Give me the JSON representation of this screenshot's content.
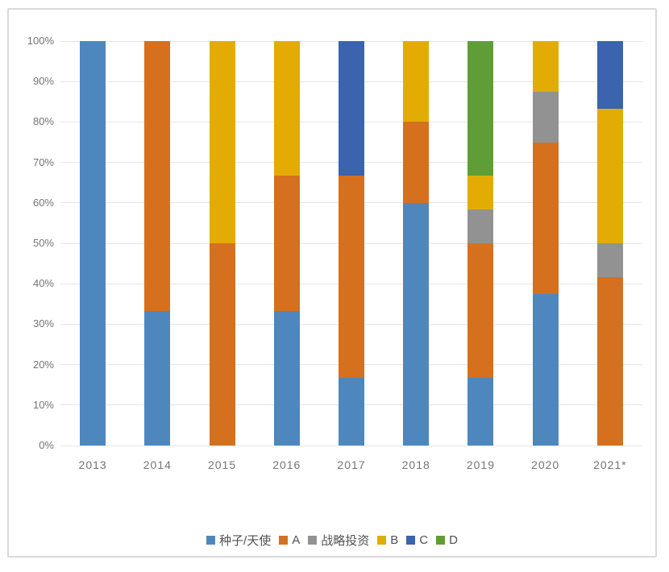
{
  "chart_data": {
    "type": "bar",
    "subtype": "stacked-100-percent",
    "title": "",
    "xlabel": "",
    "ylabel": "",
    "grid": true,
    "categories": [
      "2013",
      "2014",
      "2015",
      "2016",
      "2017",
      "2018",
      "2019",
      "2020",
      "2021*"
    ],
    "series": [
      {
        "name": "种子/天使",
        "color": "#4e87be",
        "values": [
          100,
          33.3,
          0,
          33.3,
          16.7,
          60,
          16.7,
          37.5,
          0
        ]
      },
      {
        "name": "A",
        "color": "#d5701e",
        "values": [
          0,
          66.7,
          50,
          33.3,
          50,
          20,
          33.3,
          37.5,
          41.7
        ]
      },
      {
        "name": "战略投资",
        "color": "#929292",
        "values": [
          0,
          0,
          0,
          0,
          0,
          0,
          8.3,
          12.5,
          8.3
        ]
      },
      {
        "name": "B",
        "color": "#e2ac04",
        "values": [
          0,
          0,
          50,
          33.3,
          0,
          20,
          8.3,
          12.5,
          33.3
        ]
      },
      {
        "name": "C",
        "color": "#3b63ae",
        "values": [
          0,
          0,
          0,
          0,
          33.3,
          0,
          0,
          0,
          16.7
        ]
      },
      {
        "name": "D",
        "color": "#5f9e37",
        "values": [
          0,
          0,
          0,
          0,
          0,
          0,
          33.3,
          0,
          0
        ]
      }
    ],
    "y_axis": {
      "min": 0,
      "max": 100,
      "step": 10,
      "format": "percent",
      "tick_labels": [
        "0%",
        "10%",
        "20%",
        "30%",
        "40%",
        "50%",
        "60%",
        "70%",
        "80%",
        "90%",
        "100%"
      ]
    },
    "legend": {
      "position": "bottom",
      "entries": [
        "种子/天使",
        "A",
        "战略投资",
        "B",
        "C",
        "D"
      ]
    }
  },
  "colors": {
    "background": "#ffffff",
    "frame_border": "#d9d9d9",
    "gridline": "#e6e6e6",
    "axis_text": "#747474",
    "legend_text": "#515151"
  }
}
